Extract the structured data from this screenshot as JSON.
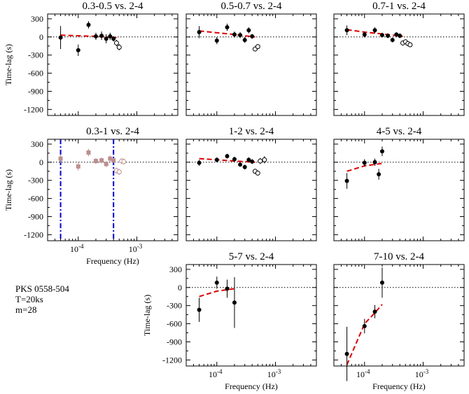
{
  "figure_info": {
    "lines": [
      "PKS 0558-504",
      "T=20ks",
      "m=28"
    ]
  },
  "chart_data": [
    {
      "type": "scatter",
      "title": "0.3-0.5 vs. 2-4",
      "ylabel": "Time-lag (s)",
      "xlabel": "",
      "xscale": "log",
      "xlim": [
        3e-05,
        0.005
      ],
      "ylim": [
        -1300,
        380
      ],
      "yticks": [
        300,
        0,
        -300,
        -600,
        -900,
        -1200
      ],
      "xticks": [],
      "filled": [
        {
          "x": 5e-05,
          "y": -10,
          "err": 190
        },
        {
          "x": 0.0001,
          "y": -220,
          "err": 95
        },
        {
          "x": 0.00015,
          "y": 200,
          "err": 60
        },
        {
          "x": 0.0002,
          "y": 10,
          "err": 60
        },
        {
          "x": 0.00025,
          "y": 20,
          "err": 70
        },
        {
          "x": 0.0003,
          "y": -30,
          "err": 75
        },
        {
          "x": 0.00035,
          "y": 10,
          "err": 60
        },
        {
          "x": 0.0004,
          "y": -30,
          "err": 45
        }
      ],
      "open": [
        {
          "x": 0.00045,
          "y": -100,
          "err": 50
        },
        {
          "x": 0.0005,
          "y": -170,
          "err": 50
        }
      ],
      "model": {
        "x": [
          5e-05,
          0.0001,
          0.0002,
          0.00045
        ],
        "y": [
          30,
          20,
          10,
          -10
        ]
      }
    },
    {
      "type": "scatter",
      "title": "0.5-0.7 vs. 2-4",
      "ylabel": "",
      "xlabel": "",
      "xscale": "log",
      "xlim": [
        3e-05,
        0.005
      ],
      "ylim": [
        -1300,
        380
      ],
      "yticks": [],
      "xticks": [],
      "filled": [
        {
          "x": 5e-05,
          "y": 80,
          "err": 100
        },
        {
          "x": 0.0001,
          "y": -60,
          "err": 60
        },
        {
          "x": 0.00015,
          "y": 160,
          "err": 60
        },
        {
          "x": 0.0002,
          "y": 40,
          "err": 50
        },
        {
          "x": 0.00025,
          "y": 30,
          "err": 50
        },
        {
          "x": 0.0003,
          "y": -50,
          "err": 50
        },
        {
          "x": 0.00035,
          "y": 110,
          "err": 50
        },
        {
          "x": 0.0004,
          "y": 10,
          "err": 40
        }
      ],
      "open": [
        {
          "x": 0.00045,
          "y": -200,
          "err": 40
        },
        {
          "x": 0.0005,
          "y": -160,
          "err": 40
        }
      ],
      "model": {
        "x": [
          5e-05,
          0.0001,
          0.0002,
          0.00045
        ],
        "y": [
          100,
          70,
          40,
          0
        ]
      }
    },
    {
      "type": "scatter",
      "title": "0.7-1 vs. 2-4",
      "ylabel": "",
      "xlabel": "",
      "xscale": "log",
      "xlim": [
        3e-05,
        0.005
      ],
      "ylim": [
        -1300,
        380
      ],
      "yticks": [],
      "xticks": [],
      "filled": [
        {
          "x": 5e-05,
          "y": 110,
          "err": 80
        },
        {
          "x": 0.0001,
          "y": 40,
          "err": 50
        },
        {
          "x": 0.00015,
          "y": 110,
          "err": 50
        },
        {
          "x": 0.0002,
          "y": 30,
          "err": 40
        },
        {
          "x": 0.00025,
          "y": 20,
          "err": 40
        },
        {
          "x": 0.0003,
          "y": -50,
          "err": 40
        },
        {
          "x": 0.00035,
          "y": 40,
          "err": 40
        },
        {
          "x": 0.0004,
          "y": 20,
          "err": 40
        }
      ],
      "open": [
        {
          "x": 0.00045,
          "y": -100,
          "err": 40
        },
        {
          "x": 0.0005,
          "y": -80,
          "err": 40
        },
        {
          "x": 0.00055,
          "y": -110,
          "err": 40
        },
        {
          "x": 0.0006,
          "y": -130,
          "err": 40
        }
      ],
      "model": {
        "x": [
          5e-05,
          0.0001,
          0.0002,
          0.00045
        ],
        "y": [
          120,
          80,
          50,
          10
        ]
      }
    },
    {
      "type": "scatter",
      "title": "0.3-1 vs. 2-4",
      "ylabel": "Time-lag (s)",
      "xlabel": "Frequency (Hz)",
      "xscale": "log",
      "xlim": [
        3e-05,
        0.005
      ],
      "ylim": [
        -1300,
        380
      ],
      "yticks": [
        300,
        0,
        -300,
        -600,
        -900,
        -1200
      ],
      "xticks": [
        0.0001,
        0.001
      ],
      "xticklabels": [
        "10-4",
        "10-3"
      ],
      "color": "#bc8f8f",
      "filled": [
        {
          "x": 5e-05,
          "y": 60,
          "err": 70
        },
        {
          "x": 0.0001,
          "y": -70,
          "err": 70
        },
        {
          "x": 0.00015,
          "y": 160,
          "err": 60
        },
        {
          "x": 0.0002,
          "y": 20,
          "err": 50
        },
        {
          "x": 0.00025,
          "y": 30,
          "err": 50
        },
        {
          "x": 0.0003,
          "y": -30,
          "err": 50
        },
        {
          "x": 0.00035,
          "y": 60,
          "err": 50
        },
        {
          "x": 0.0004,
          "y": 30,
          "err": 40
        }
      ],
      "open": [
        {
          "x": 0.00045,
          "y": -140,
          "err": 50
        },
        {
          "x": 0.0005,
          "y": -160,
          "err": 50
        },
        {
          "x": 0.00055,
          "y": 20,
          "err": 50
        },
        {
          "x": 0.0006,
          "y": 10,
          "err": 50
        }
      ],
      "vlines": [
        5e-05,
        0.0004
      ],
      "model": null
    },
    {
      "type": "scatter",
      "title": "1-2 vs. 2-4",
      "ylabel": "",
      "xlabel": "",
      "xscale": "log",
      "xlim": [
        3e-05,
        0.005
      ],
      "ylim": [
        -1300,
        380
      ],
      "yticks": [],
      "xticks": [],
      "filled": [
        {
          "x": 5e-05,
          "y": -10,
          "err": 50
        },
        {
          "x": 0.0001,
          "y": 40,
          "err": 40
        },
        {
          "x": 0.00015,
          "y": 100,
          "err": 40
        },
        {
          "x": 0.0002,
          "y": 50,
          "err": 40
        },
        {
          "x": 0.00025,
          "y": -40,
          "err": 30
        },
        {
          "x": 0.0003,
          "y": -80,
          "err": 40
        },
        {
          "x": 0.00035,
          "y": 40,
          "err": 40
        },
        {
          "x": 0.0004,
          "y": 10,
          "err": 40
        }
      ],
      "open": [
        {
          "x": 0.00045,
          "y": -150,
          "err": 40
        },
        {
          "x": 0.0005,
          "y": -180,
          "err": 40
        },
        {
          "x": 0.00055,
          "y": 20,
          "err": 50
        },
        {
          "x": 0.00065,
          "y": 40,
          "err": 60
        }
      ],
      "model": {
        "x": [
          5e-05,
          0.0001,
          0.0002,
          0.00045
        ],
        "y": [
          60,
          40,
          20,
          0
        ]
      }
    },
    {
      "type": "scatter",
      "title": "4-5 vs. 2-4",
      "ylabel": "",
      "xlabel": "",
      "xscale": "log",
      "xlim": [
        3e-05,
        0.005
      ],
      "ylim": [
        -1300,
        380
      ],
      "yticks": [],
      "xticks": [],
      "filled": [
        {
          "x": 5e-05,
          "y": -310,
          "err": 130
        },
        {
          "x": 0.0001,
          "y": -10,
          "err": 60
        },
        {
          "x": 0.00015,
          "y": 0,
          "err": 60
        },
        {
          "x": 0.000175,
          "y": -200,
          "err": 90
        },
        {
          "x": 0.0002,
          "y": 180,
          "err": 80
        }
      ],
      "open": [],
      "model": {
        "x": [
          5e-05,
          0.0001,
          0.0002
        ],
        "y": [
          -150,
          -60,
          -20
        ]
      }
    },
    {
      "type": "scatter",
      "title": "5-7 vs. 2-4",
      "ylabel": "Time-lag (s)",
      "xlabel": "Frequency (Hz)",
      "xscale": "log",
      "xlim": [
        3e-05,
        0.005
      ],
      "ylim": [
        -1300,
        380
      ],
      "yticks": [
        300,
        0,
        -300,
        -600,
        -900,
        -1200
      ],
      "xticks": [
        0.0001,
        0.001
      ],
      "xticklabels": [
        "10-4",
        "10-3"
      ],
      "filled": [
        {
          "x": 5e-05,
          "y": -370,
          "err": 200
        },
        {
          "x": 0.0001,
          "y": 80,
          "err": 100
        },
        {
          "x": 0.00015,
          "y": -20,
          "err": 150
        },
        {
          "x": 0.0002,
          "y": -250,
          "err": 420
        }
      ],
      "open": [],
      "model": {
        "x": [
          5e-05,
          0.0001,
          0.0002
        ],
        "y": [
          -150,
          -60,
          -20
        ]
      }
    },
    {
      "type": "scatter",
      "title": "7-10 vs. 2-4",
      "ylabel": "",
      "xlabel": "Frequency (Hz)",
      "xscale": "log",
      "xlim": [
        3e-05,
        0.005
      ],
      "ylim": [
        -1300,
        380
      ],
      "yticks": [],
      "xticks": [
        0.0001,
        0.001
      ],
      "xticklabels": [
        "10-4",
        "10-3"
      ],
      "filled": [
        {
          "x": 5e-05,
          "y": -1100,
          "err": 450
        },
        {
          "x": 0.0001,
          "y": -640,
          "err": 120
        },
        {
          "x": 0.00015,
          "y": -400,
          "err": 110
        },
        {
          "x": 0.0002,
          "y": 80,
          "err": 250
        }
      ],
      "open": [],
      "model": {
        "x": [
          5e-05,
          7e-05,
          0.0001,
          0.00015,
          0.0002
        ],
        "y": [
          -1280,
          -950,
          -600,
          -420,
          -280
        ]
      }
    }
  ]
}
